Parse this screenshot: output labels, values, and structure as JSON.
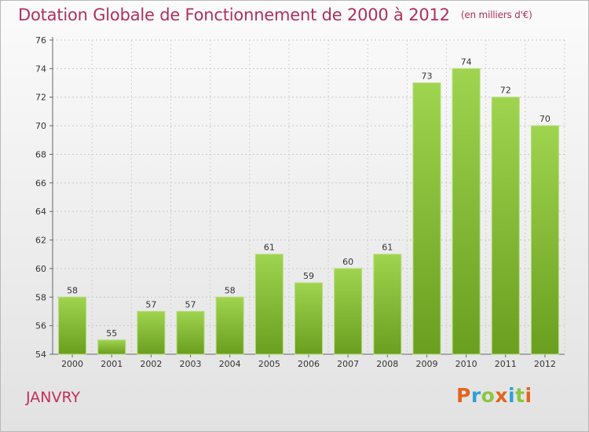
{
  "chart_data": {
    "type": "bar",
    "title": "Dotation Globale de Fonctionnement de 2000 à 2012",
    "subtitle": "(en milliers d'€)",
    "categories": [
      "2000",
      "2001",
      "2002",
      "2003",
      "2004",
      "2005",
      "2006",
      "2007",
      "2008",
      "2009",
      "2010",
      "2011",
      "2012"
    ],
    "values": [
      58,
      55,
      57,
      57,
      58,
      61,
      59,
      60,
      61,
      73,
      74,
      72,
      70
    ],
    "ylim": [
      54,
      76
    ],
    "yticks": [
      54,
      56,
      58,
      60,
      62,
      64,
      66,
      68,
      70,
      72,
      74,
      76
    ],
    "grid": true,
    "bar_color": "#8cc63f",
    "bar_color_dark": "#6a9e1f"
  },
  "footer": {
    "commune": "JANVRY",
    "brand": "Proxiti",
    "brand_colors": [
      "#e3641c",
      "#2f9fd8",
      "#8cc63f",
      "#e3641c",
      "#2f9fd8",
      "#8cc63f",
      "#e3641c"
    ]
  }
}
